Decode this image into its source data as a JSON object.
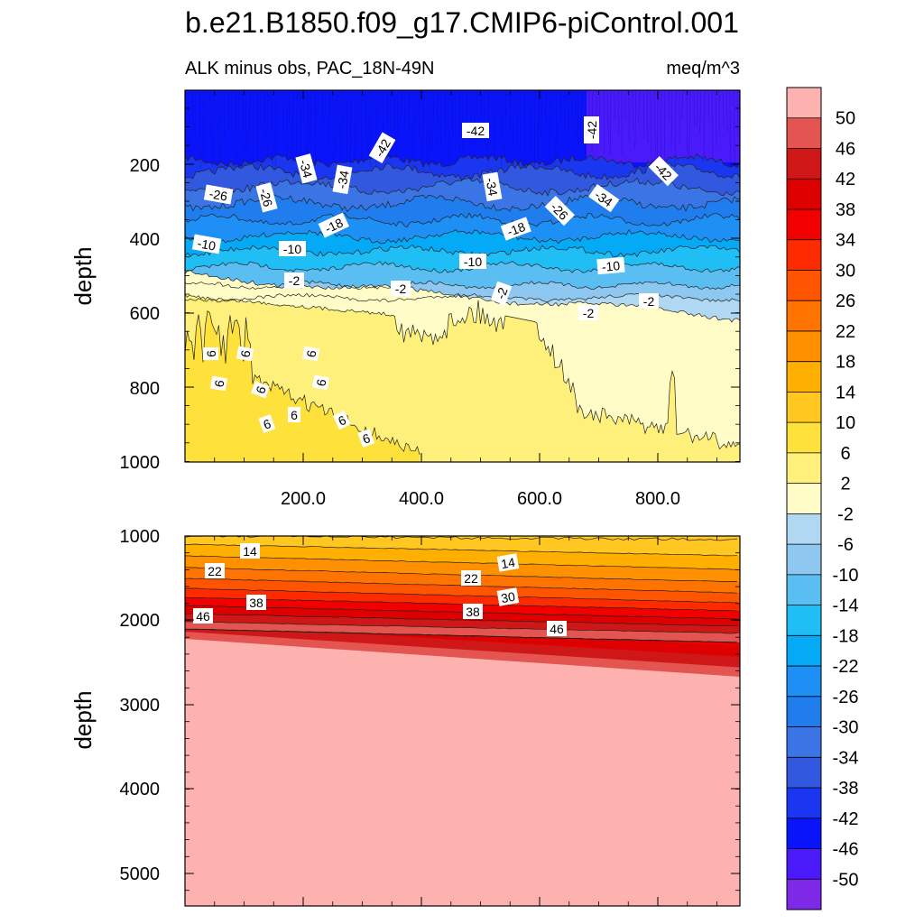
{
  "chart_data": {
    "type": "heatmap",
    "title": "b.e21.B1850.f09_g17.CMIP6-piControl.001",
    "subtitle_left": "ALK minus obs, PAC_18N-49N",
    "subtitle_right": "meq/m^3",
    "panels": [
      {
        "name": "upper",
        "ylabel": "depth",
        "ylim": [
          0,
          1000
        ],
        "xlim": [
          0,
          940
        ],
        "y_ticks": [
          "200",
          "400",
          "600",
          "800",
          "1000"
        ],
        "x_ticks": [
          "200.0",
          "400.0",
          "600.0",
          "800.0"
        ],
        "contour_labels": [
          "-42",
          "-42",
          "-42",
          "-42",
          "-34",
          "-34",
          "-34",
          "-34",
          "-26",
          "-26",
          "-26",
          "-18",
          "-18",
          "-10",
          "-10",
          "-10",
          "-10",
          "-2",
          "-2",
          "-2",
          "-2",
          "-2",
          "6",
          "6",
          "6",
          "6",
          "6",
          "6",
          "6",
          "6",
          "6",
          "6"
        ]
      },
      {
        "name": "lower",
        "ylabel": "depth",
        "ylim": [
          1000,
          5400
        ],
        "xlim": [
          0,
          940
        ],
        "y_ticks": [
          "1000",
          "2000",
          "3000",
          "4000",
          "5000"
        ],
        "contour_labels": [
          "14",
          "14",
          "22",
          "22",
          "30",
          "38",
          "38",
          "46",
          "46"
        ]
      }
    ],
    "colorbar": {
      "labels": [
        "50",
        "46",
        "42",
        "38",
        "34",
        "30",
        "26",
        "22",
        "18",
        "14",
        "10",
        "6",
        "2",
        "-2",
        "-6",
        "-10",
        "-14",
        "-18",
        "-22",
        "-26",
        "-30",
        "-34",
        "-38",
        "-42",
        "-46",
        "-50"
      ],
      "colors": [
        "#fdb2b0",
        "#e45552",
        "#cf1717",
        "#de0000",
        "#f20000",
        "#ff2b00",
        "#ff5500",
        "#ff7400",
        "#ff9100",
        "#ffaf00",
        "#ffc720",
        "#ffe13c",
        "#fff07c",
        "#fffcc7",
        "#b0d8f2",
        "#8ec8f0",
        "#5bbef2",
        "#1fbef5",
        "#05aaf7",
        "#1e90f5",
        "#1f7dee",
        "#3a74e5",
        "#3158df",
        "#1a36f0",
        "#0a14fa",
        "#4a1afa",
        "#7e28e8"
      ]
    }
  }
}
